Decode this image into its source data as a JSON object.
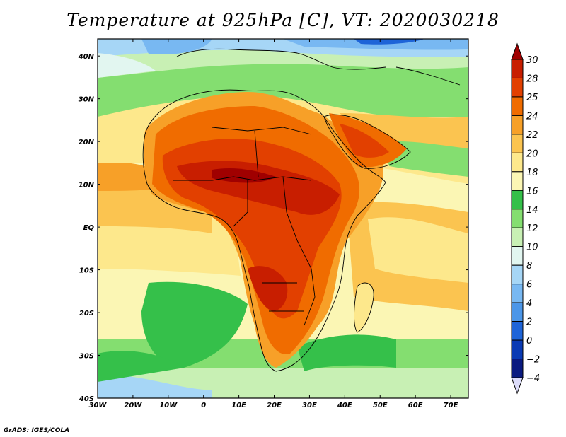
{
  "title": "Temperature at 925hPa [C], VT: 2020030218",
  "credit": "GrADS: IGES/COLA",
  "axes": {
    "lon_labels": [
      "30W",
      "20W",
      "10W",
      "0",
      "10E",
      "20E",
      "30E",
      "40E",
      "50E",
      "60E",
      "70E"
    ],
    "lat_labels": [
      "40N",
      "30N",
      "20N",
      "10N",
      "EQ",
      "10S",
      "20S",
      "30S",
      "40S"
    ],
    "lon_range": [
      -30,
      75
    ],
    "lat_range": [
      -40,
      44
    ]
  },
  "colorbar": {
    "levels": [
      30,
      28,
      25,
      24,
      22,
      20,
      18,
      16,
      14,
      12,
      10,
      8,
      6,
      4,
      2,
      0,
      -2,
      -4
    ],
    "labels": [
      "30",
      "28",
      "25",
      "24",
      "22",
      "20",
      "18",
      "16",
      "14",
      "12",
      "10",
      "8",
      "6",
      "4",
      "2",
      "0",
      "−2",
      "−4"
    ],
    "colors": [
      "#a00000",
      "#c81e00",
      "#e24000",
      "#f06c00",
      "#f7a028",
      "#fbc450",
      "#fde88c",
      "#fbf6b4",
      "#35c04a",
      "#84de70",
      "#c8f0b4",
      "#e2f6f0",
      "#a6d6f6",
      "#78b8f2",
      "#4c96e8",
      "#1e64d8",
      "#0a3ab4",
      "#0a1a80",
      "#dcdcfa"
    ]
  },
  "map": {
    "region": "Africa",
    "variable": "Temperature",
    "level": "925hPa",
    "unit": "C",
    "valid_time": "2020030218"
  }
}
